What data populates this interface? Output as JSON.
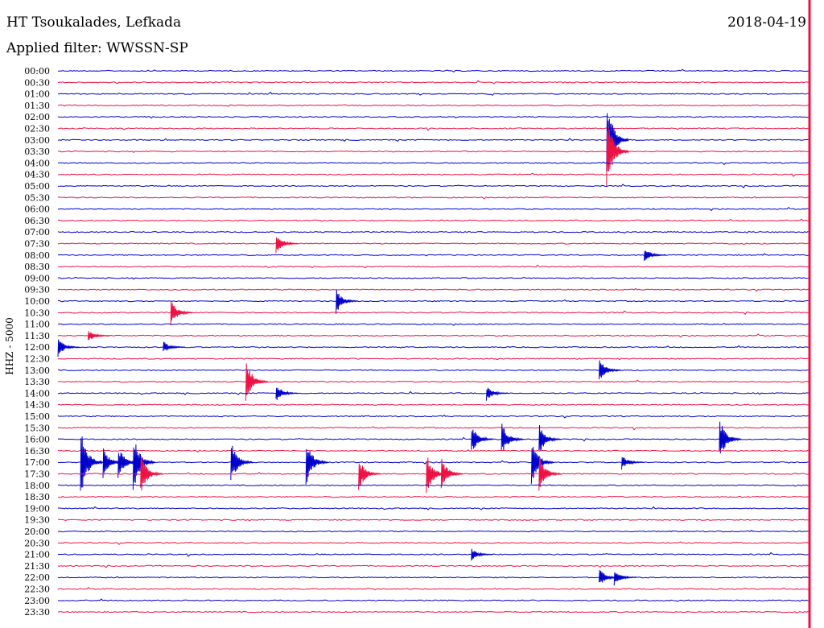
{
  "header": {
    "station": "HT Tsoukalades, Lefkada",
    "filter": "Applied filter: WWSSN-SP",
    "date": "2018-04-19"
  },
  "colors": {
    "even": "#0000cc",
    "odd": "#ee1144",
    "marker": "#ee1144"
  },
  "chart_data": {
    "type": "line",
    "ylabel": "HHZ - 5000",
    "tick_labels": [
      "00:00",
      "00:30",
      "01:00",
      "01:30",
      "02:00",
      "02:30",
      "03:00",
      "03:30",
      "04:00",
      "04:30",
      "05:00",
      "05:30",
      "06:00",
      "06:30",
      "07:00",
      "07:30",
      "08:00",
      "08:30",
      "09:00",
      "09:30",
      "10:00",
      "10:30",
      "11:00",
      "11:30",
      "12:00",
      "12:30",
      "13:00",
      "13:30",
      "14:00",
      "14:30",
      "15:00",
      "15:30",
      "16:00",
      "16:30",
      "17:00",
      "17:30",
      "18:00",
      "18:30",
      "19:00",
      "19:30",
      "20:00",
      "20:30",
      "21:00",
      "21:30",
      "22:00",
      "22:30",
      "23:00",
      "23:30"
    ],
    "series_colors": "alternating blue (full hour) / red (half hour)",
    "events": [
      {
        "row": 6,
        "t": 0.73,
        "amp": 60
      },
      {
        "row": 7,
        "t": 0.73,
        "amp": 50
      },
      {
        "row": 15,
        "t": 0.29,
        "amp": 14
      },
      {
        "row": 16,
        "t": 0.78,
        "amp": 10
      },
      {
        "row": 20,
        "t": 0.37,
        "amp": 16
      },
      {
        "row": 21,
        "t": 0.15,
        "amp": 18
      },
      {
        "row": 23,
        "t": 0.04,
        "amp": 8
      },
      {
        "row": 24,
        "t": 0.0,
        "amp": 12
      },
      {
        "row": 24,
        "t": 0.14,
        "amp": 8
      },
      {
        "row": 26,
        "t": 0.72,
        "amp": 16
      },
      {
        "row": 27,
        "t": 0.25,
        "amp": 30
      },
      {
        "row": 28,
        "t": 0.29,
        "amp": 12
      },
      {
        "row": 28,
        "t": 0.57,
        "amp": 10
      },
      {
        "row": 32,
        "t": 0.55,
        "amp": 20
      },
      {
        "row": 32,
        "t": 0.59,
        "amp": 22
      },
      {
        "row": 32,
        "t": 0.64,
        "amp": 20
      },
      {
        "row": 32,
        "t": 0.88,
        "amp": 28
      },
      {
        "row": 34,
        "t": 0.03,
        "amp": 50
      },
      {
        "row": 34,
        "t": 0.06,
        "amp": 20
      },
      {
        "row": 34,
        "t": 0.08,
        "amp": 22
      },
      {
        "row": 34,
        "t": 0.1,
        "amp": 40
      },
      {
        "row": 34,
        "t": 0.23,
        "amp": 30
      },
      {
        "row": 34,
        "t": 0.33,
        "amp": 30
      },
      {
        "row": 34,
        "t": 0.63,
        "amp": 32
      },
      {
        "row": 34,
        "t": 0.75,
        "amp": 10
      },
      {
        "row": 35,
        "t": 0.11,
        "amp": 26
      },
      {
        "row": 35,
        "t": 0.4,
        "amp": 22
      },
      {
        "row": 35,
        "t": 0.49,
        "amp": 28
      },
      {
        "row": 35,
        "t": 0.51,
        "amp": 22
      },
      {
        "row": 35,
        "t": 0.64,
        "amp": 26
      },
      {
        "row": 42,
        "t": 0.55,
        "amp": 8
      },
      {
        "row": 44,
        "t": 0.72,
        "amp": 12
      },
      {
        "row": 44,
        "t": 0.74,
        "amp": 10
      }
    ]
  }
}
